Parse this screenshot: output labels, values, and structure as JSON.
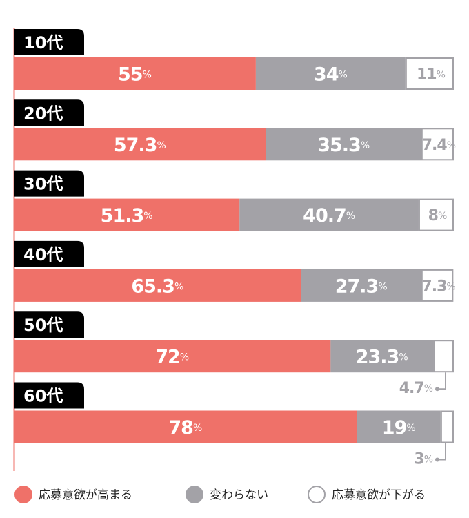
{
  "chart_data": {
    "type": "stacked-bar",
    "categories": [
      "10代",
      "20代",
      "30代",
      "40代",
      "50代",
      "60代"
    ],
    "xlim": [
      0,
      100
    ],
    "series": [
      {
        "name": "応募意欲が高まる",
        "color": "#ef7169",
        "values": [
          55,
          57.3,
          51.3,
          65.3,
          72,
          78
        ],
        "value_labels": [
          "55%",
          "57.3%",
          "51.3%",
          "65.3%",
          "72%",
          "78%"
        ]
      },
      {
        "name": "変わらない",
        "color": "#a3a2a7",
        "values": [
          34,
          35.3,
          40.7,
          27.3,
          23.3,
          19
        ],
        "value_labels": [
          "34%",
          "35.3%",
          "40.7%",
          "27.3%",
          "23.3%",
          "19%"
        ]
      },
      {
        "name": "応募意欲が下がる",
        "color": "#ffffff",
        "values": [
          11,
          7.4,
          8,
          7.3,
          4.7,
          3
        ],
        "value_labels": [
          "11%",
          "7.4%",
          "8%",
          "7.3%",
          "4.7%",
          "3%"
        ]
      }
    ]
  }
}
